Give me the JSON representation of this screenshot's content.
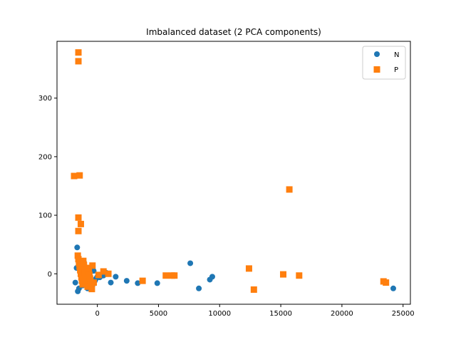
{
  "chart_data": {
    "type": "scatter",
    "title": "Imbalanced dataset (2 PCA components)",
    "xlabel": "",
    "ylabel": "",
    "xlim": [
      -3300,
      25600
    ],
    "ylim": [
      -52,
      397
    ],
    "xticks": [
      0,
      5000,
      10000,
      15000,
      20000,
      25000
    ],
    "yticks": [
      0,
      100,
      200,
      300
    ],
    "grid": false,
    "legend_position": "top-right",
    "series": [
      {
        "name": "N",
        "marker": "circle",
        "color": "#1f77b4",
        "points": [
          [
            -1650,
            45
          ],
          [
            -1700,
            10
          ],
          [
            -1800,
            -15
          ],
          [
            -1600,
            -30
          ],
          [
            -1500,
            -25
          ],
          [
            -1400,
            5
          ],
          [
            -1300,
            -10
          ],
          [
            -1200,
            -20
          ],
          [
            -1100,
            20
          ],
          [
            -1000,
            -15
          ],
          [
            -900,
            0
          ],
          [
            -800,
            -25
          ],
          [
            -700,
            -5
          ],
          [
            -600,
            -10
          ],
          [
            -500,
            10
          ],
          [
            -400,
            -20
          ],
          [
            -300,
            5
          ],
          [
            -200,
            -12
          ],
          [
            -100,
            -8
          ],
          [
            0,
            -5
          ],
          [
            200,
            -6
          ],
          [
            500,
            -3
          ],
          [
            700,
            2
          ],
          [
            1100,
            -15
          ],
          [
            1500,
            -5
          ],
          [
            2400,
            -12
          ],
          [
            3300,
            -16
          ],
          [
            4900,
            -16
          ],
          [
            7600,
            18
          ],
          [
            8300,
            -25
          ],
          [
            9200,
            -10
          ],
          [
            9400,
            -5
          ],
          [
            24200,
            -25
          ]
        ]
      },
      {
        "name": "P",
        "marker": "square",
        "color": "#ff7f0e",
        "points": [
          [
            -1550,
            378
          ],
          [
            -1550,
            363
          ],
          [
            -1900,
            167
          ],
          [
            -1450,
            168
          ],
          [
            -1550,
            96
          ],
          [
            -1550,
            73
          ],
          [
            -1350,
            85
          ],
          [
            -1600,
            31
          ],
          [
            -1550,
            25
          ],
          [
            -1500,
            18
          ],
          [
            -1450,
            12
          ],
          [
            -1400,
            6
          ],
          [
            -1350,
            0
          ],
          [
            -1300,
            -6
          ],
          [
            -1250,
            -12
          ],
          [
            -1200,
            -18
          ],
          [
            -1150,
            22
          ],
          [
            -1100,
            15
          ],
          [
            -1050,
            8
          ],
          [
            -1000,
            2
          ],
          [
            -950,
            -4
          ],
          [
            -900,
            -10
          ],
          [
            -850,
            -16
          ],
          [
            -800,
            -22
          ],
          [
            -750,
            10
          ],
          [
            -700,
            4
          ],
          [
            -650,
            -2
          ],
          [
            -600,
            -8
          ],
          [
            -550,
            -14
          ],
          [
            -500,
            -20
          ],
          [
            -450,
            -26
          ],
          [
            -400,
            14
          ],
          [
            -300,
            -15
          ],
          [
            100,
            -2
          ],
          [
            500,
            4
          ],
          [
            900,
            0
          ],
          [
            3700,
            -12
          ],
          [
            5600,
            -3
          ],
          [
            6100,
            -3
          ],
          [
            6300,
            -3
          ],
          [
            12400,
            9
          ],
          [
            12800,
            -27
          ],
          [
            15200,
            -1
          ],
          [
            15700,
            144
          ],
          [
            16500,
            -3
          ],
          [
            23400,
            -13
          ],
          [
            23600,
            -15
          ]
        ]
      }
    ]
  }
}
